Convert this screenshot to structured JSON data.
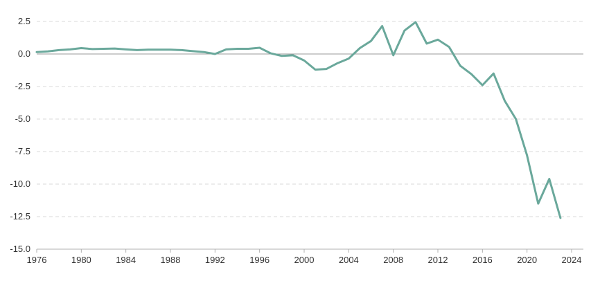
{
  "chart_data": {
    "type": "line",
    "title": "",
    "xlabel": "",
    "ylabel": "",
    "xlim": [
      1976,
      2024
    ],
    "ylim": [
      -15,
      2.5
    ],
    "x_ticks": [
      1976,
      1980,
      1984,
      1988,
      1992,
      1996,
      2000,
      2004,
      2008,
      2012,
      2016,
      2020,
      2024
    ],
    "y_ticks": [
      2.5,
      0.0,
      -2.5,
      -5.0,
      -7.5,
      -10.0,
      -12.5,
      -15.0
    ],
    "x_tick_labels": [
      "1976",
      "1980",
      "1984",
      "1988",
      "1992",
      "1996",
      "2000",
      "2004",
      "2008",
      "2012",
      "2016",
      "2020",
      "2024"
    ],
    "y_tick_labels": [
      "2.5",
      "0.0",
      "-2.5",
      "-5.0",
      "-7.5",
      "-10.0",
      "-12.5",
      "-15.0"
    ],
    "grid": "horizontal dashed",
    "zero_line": true,
    "series": [
      {
        "color": "#6aa89b",
        "x": [
          1976,
          1977,
          1978,
          1979,
          1980,
          1981,
          1982,
          1983,
          1984,
          1985,
          1986,
          1987,
          1988,
          1989,
          1990,
          1991,
          1992,
          1993,
          1994,
          1995,
          1996,
          1997,
          1998,
          1999,
          2000,
          2001,
          2002,
          2003,
          2004,
          2005,
          2006,
          2007,
          2008,
          2009,
          2010,
          2011,
          2012,
          2013,
          2014,
          2015,
          2016,
          2017,
          2018,
          2019,
          2020,
          2021,
          2022,
          2023
        ],
        "y": [
          0.15,
          0.2,
          0.3,
          0.35,
          0.45,
          0.38,
          0.4,
          0.42,
          0.35,
          0.3,
          0.33,
          0.33,
          0.33,
          0.3,
          0.22,
          0.15,
          0.0,
          0.35,
          0.4,
          0.4,
          0.48,
          0.05,
          -0.15,
          -0.1,
          -0.5,
          -1.2,
          -1.15,
          -0.7,
          -0.35,
          0.45,
          1.0,
          2.15,
          -0.1,
          1.8,
          2.45,
          0.8,
          1.1,
          0.55,
          -0.9,
          -1.55,
          -2.4,
          -1.5,
          -3.6,
          -5.0,
          -7.8,
          -11.5,
          -9.6,
          -12.6
        ]
      }
    ]
  }
}
